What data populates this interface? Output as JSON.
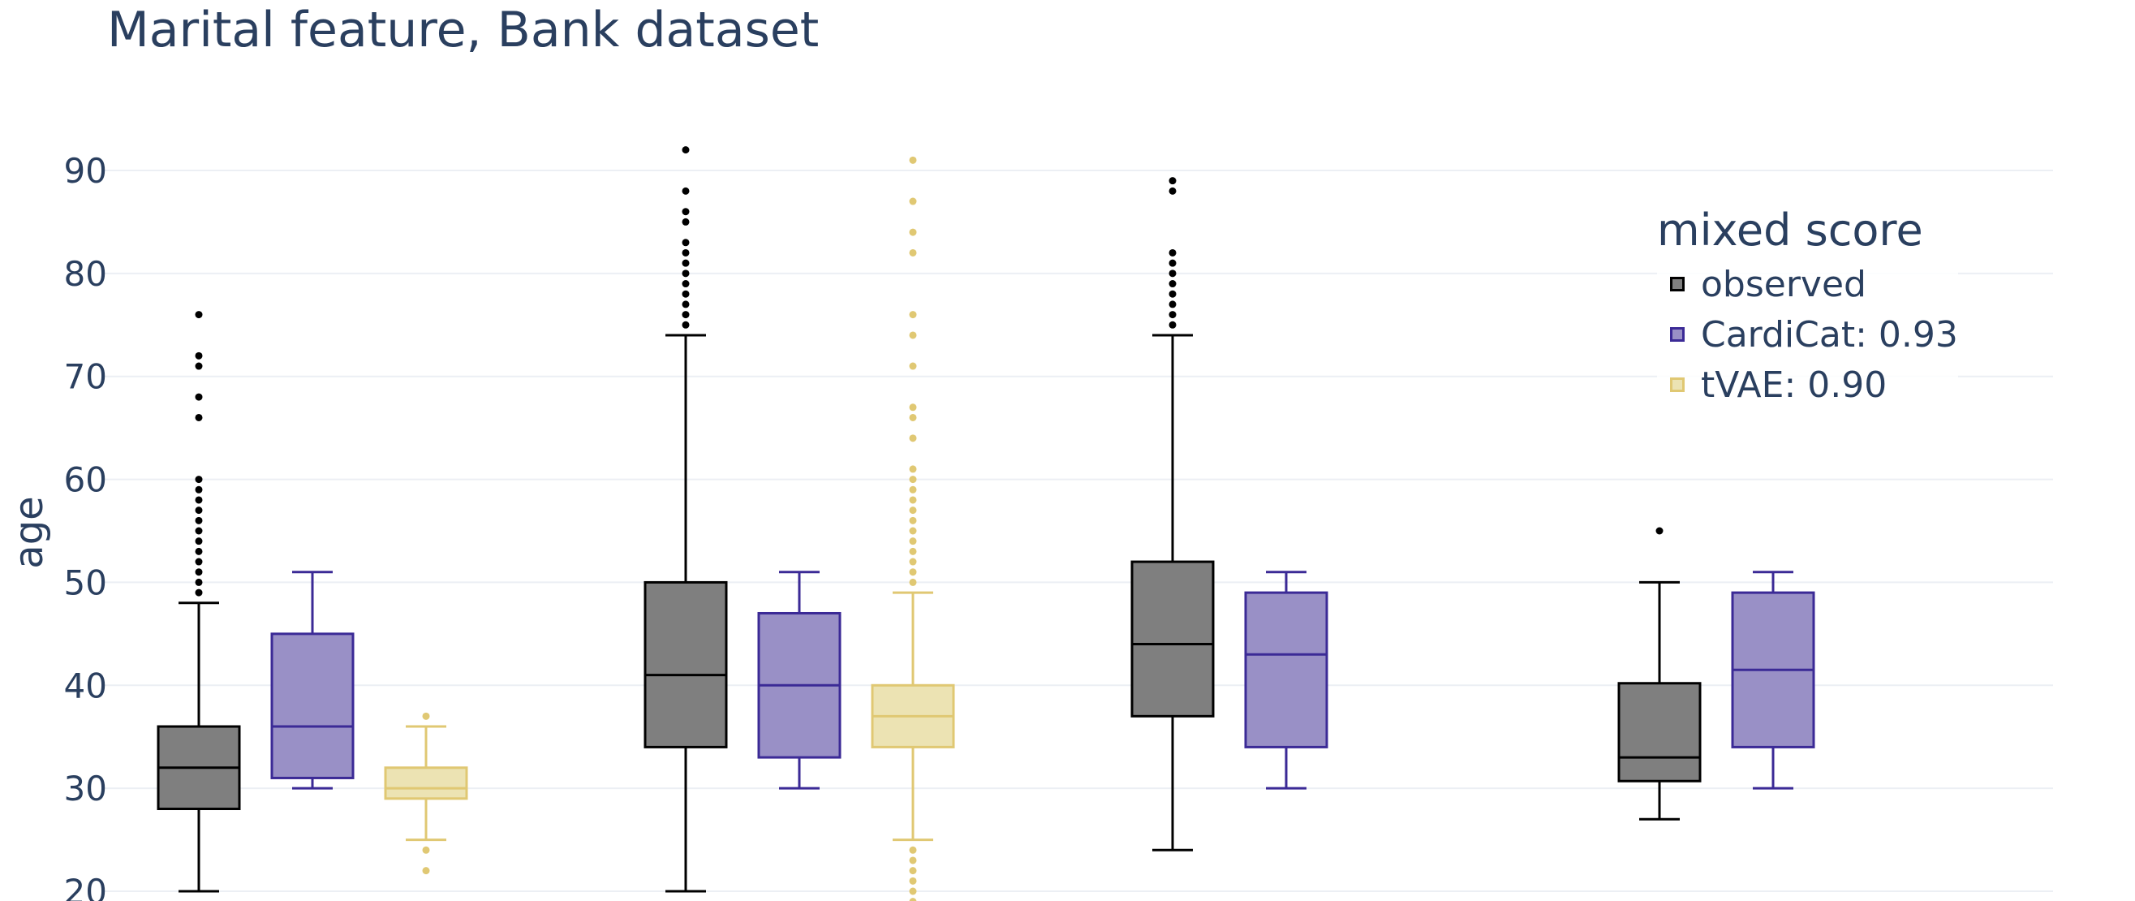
{
  "chart_data": {
    "type": "box",
    "title": "Marital feature, Bank dataset",
    "ylabel": "age",
    "ylim": [
      20,
      92
    ],
    "yticks": [
      20,
      30,
      40,
      50,
      60,
      70,
      80,
      90
    ],
    "grid": true,
    "legend": {
      "title": "mixed score",
      "placement": "top-right",
      "entries": [
        "observed",
        "CardiCat: 0.93",
        "tVAE: 0.90"
      ]
    },
    "groups": 4,
    "series": [
      {
        "name": "observed",
        "color_fill": "#7f7f7f",
        "color_line": "#000000",
        "boxes": [
          {
            "group": 0,
            "lower": 20,
            "q1": 28,
            "median": 32,
            "q3": 36,
            "upper": 48,
            "outliers": [
              49,
              50,
              51,
              52,
              53,
              54,
              55,
              56,
              57,
              58,
              59,
              60,
              66,
              68,
              71,
              72,
              76
            ]
          },
          {
            "group": 1,
            "lower": 20,
            "q1": 34,
            "median": 41,
            "q3": 50,
            "upper": 74,
            "outliers": [
              75,
              76,
              77,
              78,
              79,
              80,
              81,
              82,
              83,
              85,
              86,
              88,
              92
            ]
          },
          {
            "group": 2,
            "lower": 24,
            "q1": 37,
            "median": 44,
            "q3": 52,
            "upper": 74,
            "outliers": [
              75,
              76,
              77,
              78,
              79,
              80,
              81,
              82,
              88,
              89
            ]
          },
          {
            "group": 3,
            "lower": 27,
            "q1": 30.7,
            "median": 33,
            "q3": 40.2,
            "upper": 50,
            "outliers": [
              55
            ]
          }
        ]
      },
      {
        "name": "CardiCat: 0.93",
        "color_fill": "#9990c6",
        "color_line": "#3b2a96",
        "boxes": [
          {
            "group": 0,
            "lower": 30,
            "q1": 31,
            "median": 36,
            "q3": 45,
            "upper": 51,
            "outliers": []
          },
          {
            "group": 1,
            "lower": 30,
            "q1": 33,
            "median": 40,
            "q3": 47,
            "upper": 51,
            "outliers": []
          },
          {
            "group": 2,
            "lower": 30,
            "q1": 34,
            "median": 43,
            "q3": 49,
            "upper": 51,
            "outliers": []
          },
          {
            "group": 3,
            "lower": 30,
            "q1": 34,
            "median": 41.5,
            "q3": 49,
            "upper": 51,
            "outliers": []
          }
        ]
      },
      {
        "name": "tVAE: 0.90",
        "color_fill": "#ece3b3",
        "color_line": "#e0c873",
        "boxes": [
          {
            "group": 0,
            "lower": 25,
            "q1": 29,
            "median": 30,
            "q3": 32,
            "upper": 36,
            "outliers": [
              22,
              24,
              37
            ]
          },
          {
            "group": 1,
            "lower": 25,
            "q1": 34,
            "median": 37,
            "q3": 40,
            "upper": 49,
            "outliers": [
              19,
              20,
              21,
              22,
              23,
              24,
              50,
              51,
              52,
              53,
              54,
              55,
              56,
              57,
              58,
              59,
              60,
              61,
              64,
              66,
              67,
              71,
              74,
              76,
              82,
              84,
              87,
              91
            ]
          }
        ]
      }
    ]
  }
}
